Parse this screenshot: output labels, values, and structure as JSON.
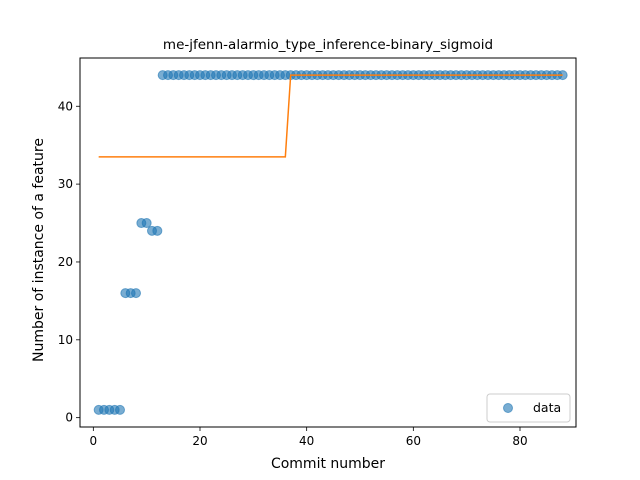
{
  "chart_data": {
    "type": "scatter",
    "title": "me-jfenn-alarmio_type_inference-binary_sigmoid",
    "xlabel": "Commit number",
    "ylabel": "Number of instance of a feature",
    "xlim": [
      -2.5,
      90.5
    ],
    "ylim": [
      -1.2,
      46.2
    ],
    "xticks": [
      0,
      20,
      40,
      60,
      80
    ],
    "yticks": [
      0,
      10,
      20,
      30,
      40
    ],
    "legend_position": "lower-right",
    "colors": {
      "data": "#1f77b4",
      "fit": "#ff7f0e"
    },
    "series": [
      {
        "name": "data",
        "kind": "scatter",
        "x": [
          1,
          2,
          3,
          4,
          5,
          6,
          7,
          8,
          9,
          10,
          11,
          12,
          13,
          14,
          15,
          16,
          17,
          18,
          19,
          20,
          21,
          22,
          23,
          24,
          25,
          26,
          27,
          28,
          29,
          30,
          31,
          32,
          33,
          34,
          35,
          36,
          37,
          38,
          39,
          40,
          41,
          42,
          43,
          44,
          45,
          46,
          47,
          48,
          49,
          50,
          51,
          52,
          53,
          54,
          55,
          56,
          57,
          58,
          59,
          60,
          61,
          62,
          63,
          64,
          65,
          66,
          67,
          68,
          69,
          70,
          71,
          72,
          73,
          74,
          75,
          76,
          77,
          78,
          79,
          80,
          81,
          82,
          83,
          84,
          85,
          86,
          87,
          88
        ],
        "y": [
          1,
          1,
          1,
          1,
          1,
          16,
          16,
          16,
          25,
          25,
          24,
          24,
          44,
          44,
          44,
          44,
          44,
          44,
          44,
          44,
          44,
          44,
          44,
          44,
          44,
          44,
          44,
          44,
          44,
          44,
          44,
          44,
          44,
          44,
          44,
          44,
          44,
          44,
          44,
          44,
          44,
          44,
          44,
          44,
          44,
          44,
          44,
          44,
          44,
          44,
          44,
          44,
          44,
          44,
          44,
          44,
          44,
          44,
          44,
          44,
          44,
          44,
          44,
          44,
          44,
          44,
          44,
          44,
          44,
          44,
          44,
          44,
          44,
          44,
          44,
          44,
          44,
          44,
          44,
          44,
          44,
          44,
          44,
          44,
          44,
          44,
          44,
          44
        ]
      },
      {
        "kind": "line",
        "x": [
          1,
          36,
          37,
          88
        ],
        "y": [
          33.5,
          33.5,
          44,
          44
        ]
      }
    ]
  }
}
